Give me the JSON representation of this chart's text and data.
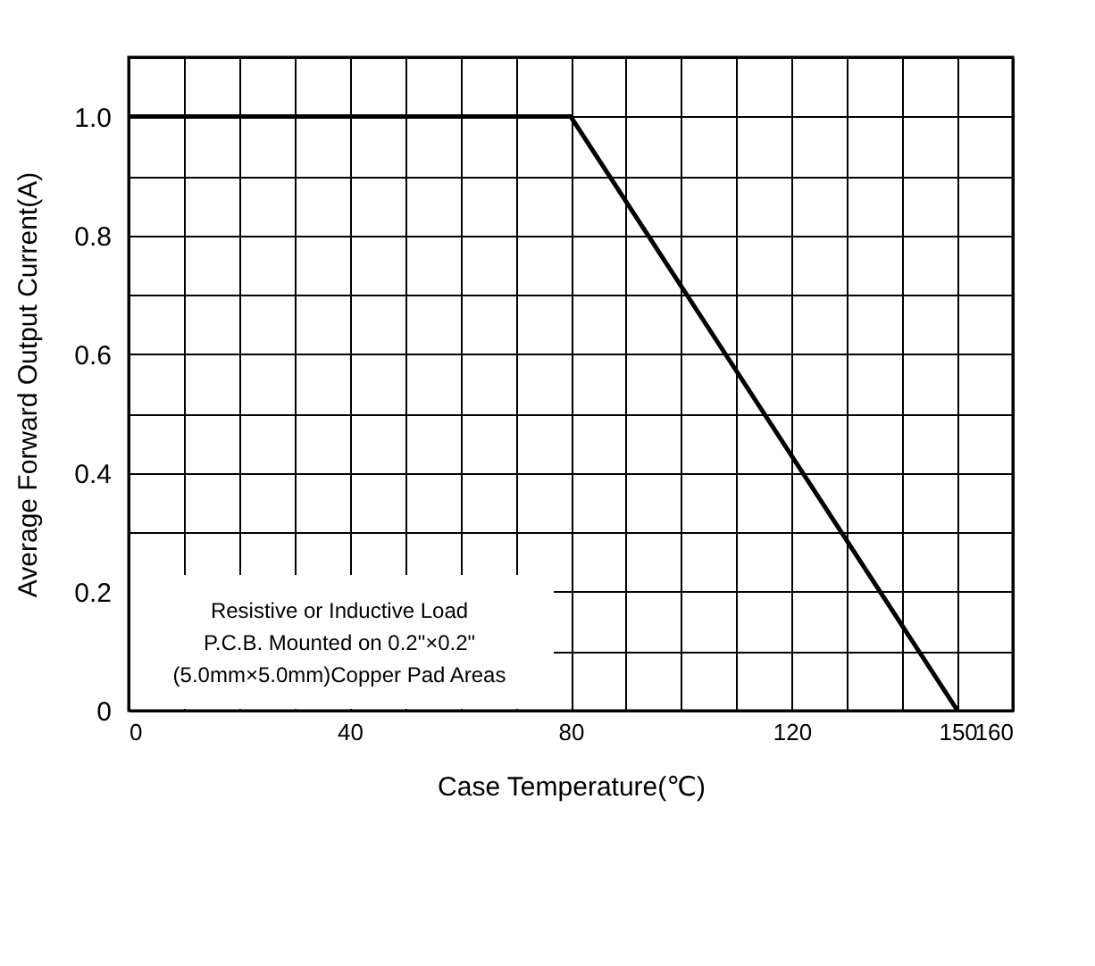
{
  "chart_data": {
    "type": "line",
    "xlabel": "Case Temperature(℃)",
    "ylabel": "Average Forward Output Current(A)",
    "x": [
      0,
      80,
      150
    ],
    "series": [
      {
        "color": "#000000",
        "values": [
          1.0,
          1.0,
          0
        ]
      }
    ],
    "xlim": [
      0,
      160
    ],
    "xticks": [
      0,
      {
        "value": 10,
        "label": null
      },
      {
        "value": 20,
        "label": null
      },
      {
        "value": 30,
        "label": null
      },
      40,
      {
        "value": 50,
        "label": null
      },
      {
        "value": 60,
        "label": null
      },
      {
        "value": 70,
        "label": null
      },
      80,
      {
        "value": 90,
        "label": null
      },
      {
        "value": 100,
        "label": null
      },
      {
        "value": 110,
        "label": null
      },
      120,
      {
        "value": 130,
        "label": null
      },
      {
        "value": 140,
        "label": null
      },
      150,
      160
    ],
    "ylim": [
      0,
      1.1
    ],
    "yticks": [
      0,
      {
        "value": 0.1,
        "label": null
      },
      0.2,
      {
        "value": 0.3,
        "label": null
      },
      0.4,
      {
        "value": 0.5,
        "label": null
      },
      0.6,
      {
        "value": 0.7,
        "label": null
      },
      0.8,
      {
        "value": 0.9,
        "label": null
      },
      {
        "value": 1,
        "label": "1.0"
      },
      {
        "value": 1.1,
        "label": null
      }
    ],
    "grid": true,
    "marker": "none",
    "line_style": "solid",
    "annotations": [
      "Resistive or Inductive Load",
      "P.C.B. Mounted on 0.2\"×0.2\"",
      "(5.0mm×5.0mm)Copper Pad Areas"
    ]
  }
}
